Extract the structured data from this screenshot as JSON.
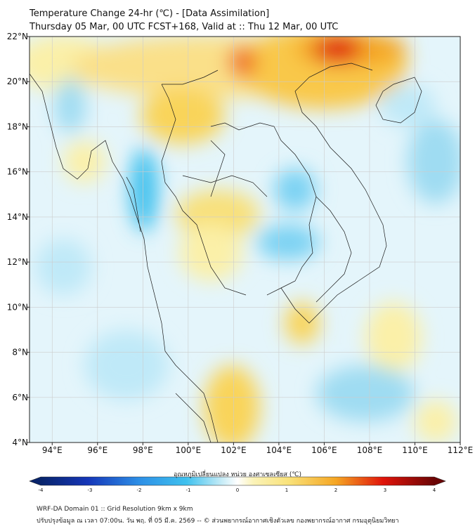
{
  "header": {
    "title": "Temperature Change 24-hr (℃) - [Data Assimilation]",
    "subtitle": "Thursday 05 Mar, 00 UTC FCST+168, Valid at :: Thu 12 Mar, 00 UTC"
  },
  "map": {
    "region": "Mainland Southeast Asia",
    "lon_range": [
      93,
      112
    ],
    "lat_range": [
      4,
      22
    ],
    "x_ticks": [
      "94°E",
      "96°E",
      "98°E",
      "100°E",
      "102°E",
      "104°E",
      "106°E",
      "108°E",
      "110°E",
      "112°E"
    ],
    "y_ticks": [
      "4°N",
      "6°N",
      "8°N",
      "10°N",
      "12°N",
      "14°N",
      "16°N",
      "18°N",
      "20°N",
      "22°N"
    ],
    "grid": true,
    "colors": {
      "warm_max": "#e0140a",
      "warm_mid": "#f5a623",
      "warm_low": "#f9e27a",
      "neutral": "#ffffff",
      "cool_low": "#c6ecf7",
      "cool_mid": "#3fc1ee",
      "cool_max": "#08246b"
    }
  },
  "colorbar": {
    "label": "อุณหภูมิเปลี่ยนแปลง หน่วย องศาเซลเซียส (℃)",
    "ticks": [
      "-4",
      "-3",
      "-2",
      "-1",
      "0",
      "1",
      "2",
      "3",
      "4"
    ],
    "min": -4,
    "max": 4
  },
  "footer": {
    "line1": "WRF-DA Domain 01 :: Grid Resolution 9km x 9km",
    "line2": "ปรับปรุงข้อมูล ณ เวลา 07:00น. วัน พฤ. ที่ 05 มี.ค. 2569 -- © ส่วนพยากรณ์อากาศเชิงตัวเลข กองพยากรณ์อากาศ กรมอุตุนิยมวิทยา"
  }
}
